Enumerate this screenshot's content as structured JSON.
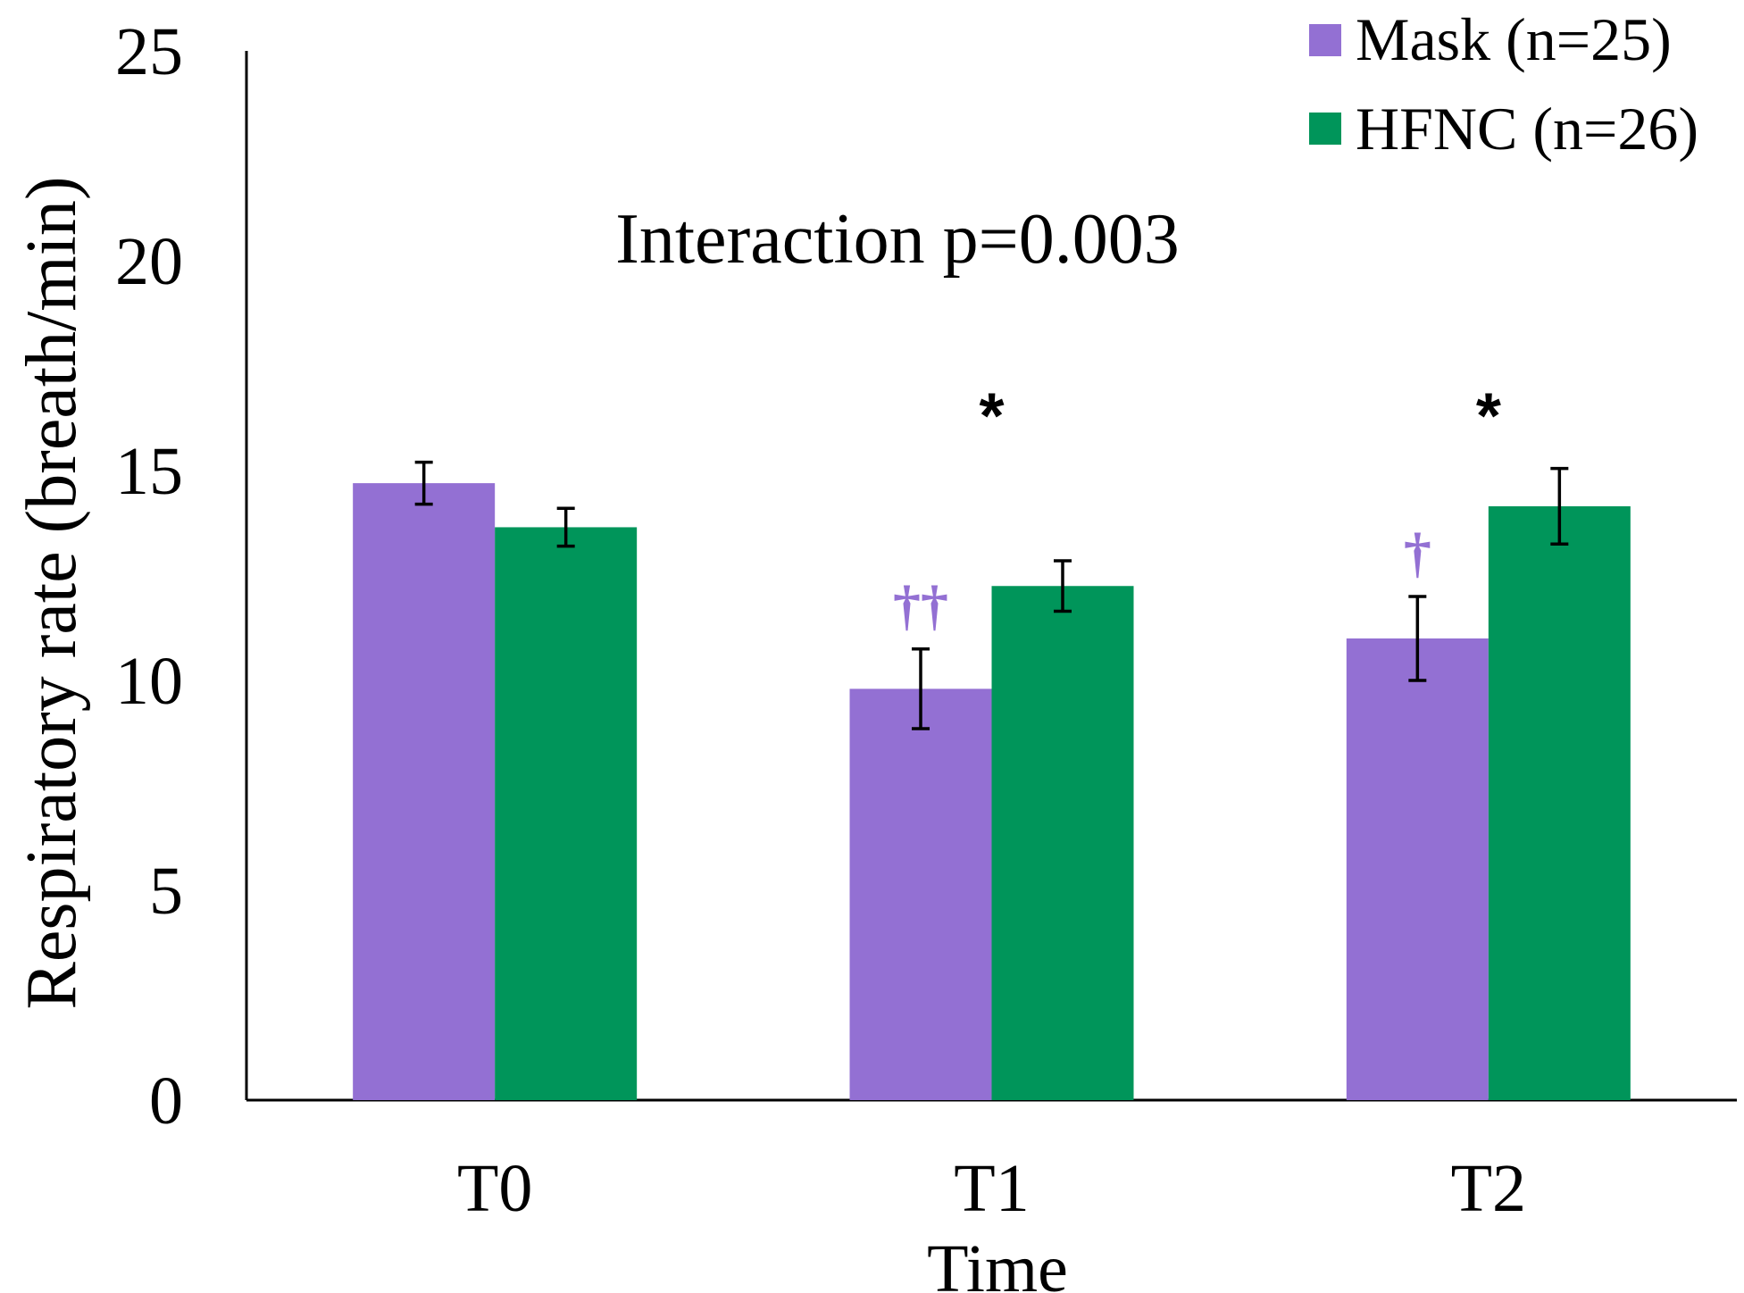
{
  "chart_data": {
    "type": "bar",
    "title": "",
    "annotation": "Interaction p=0.003",
    "xlabel": "Time",
    "ylabel": "Respiratory rate (breath/min)",
    "categories": [
      "T0",
      "T1",
      "T2"
    ],
    "ylim": [
      0,
      25
    ],
    "yticks": [
      0,
      5,
      10,
      15,
      20,
      25
    ],
    "legend_position": "top-right",
    "series": [
      {
        "name": "Mask (n=25)",
        "color": "#9370D3",
        "values": [
          14.7,
          9.8,
          11.0
        ],
        "errors": [
          0.5,
          0.95,
          1.0
        ],
        "markers": [
          "",
          "††",
          "†"
        ]
      },
      {
        "name": "HFNC (n=26)",
        "color": "#00955A",
        "values": [
          13.65,
          12.25,
          14.15
        ],
        "errors": [
          0.45,
          0.6,
          0.9
        ]
      }
    ],
    "significance": [
      "",
      "*",
      "*"
    ]
  }
}
